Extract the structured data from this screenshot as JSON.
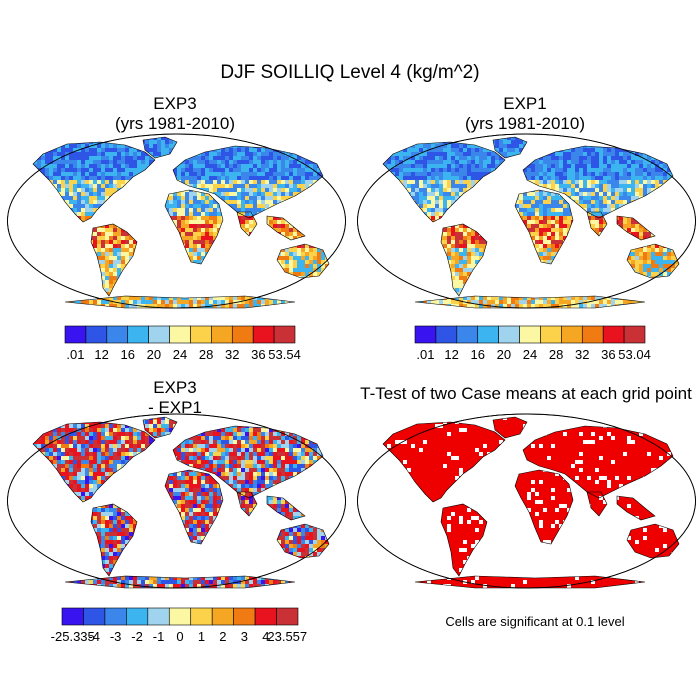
{
  "figure": {
    "title": "DJF SOILLIQ Level 4 (kg/m^2)"
  },
  "panels": [
    {
      "id": "exp3",
      "title_line1": "EXP3",
      "title_line2": "(yrs 1981-2010)",
      "field": "absolute"
    },
    {
      "id": "exp1",
      "title_line1": "EXP1",
      "title_line2": "(yrs 1981-2010)",
      "field": "absolute"
    },
    {
      "id": "diff",
      "title_line1": "EXP3",
      "title_line2": "- EXP1",
      "field": "difference"
    },
    {
      "id": "ttest",
      "title_line1": "T-Test of two Case means at each grid point",
      "title_line2": "",
      "field": "significance"
    }
  ],
  "colorbars": {
    "abs_colors": [
      "#3a14f0",
      "#2f55e6",
      "#3b86ea",
      "#3cb4f0",
      "#9fd3ee",
      "#fbf7a2",
      "#fbd24a",
      "#f5a623",
      "#f07b12",
      "#e8131e",
      "#c93136"
    ],
    "diff_colors": [
      "#3a14f0",
      "#2f55e6",
      "#3b86ea",
      "#3cb4f0",
      "#9fd3ee",
      "#fbf7a2",
      "#fbd24a",
      "#f5a623",
      "#f07b12",
      "#e8131e",
      "#c93136"
    ],
    "exp3_labels": [
      ".01",
      "12",
      "16",
      "20",
      "24",
      "28",
      "32",
      "36",
      "53.54"
    ],
    "exp1_labels": [
      ".01",
      "12",
      "16",
      "20",
      "24",
      "28",
      "32",
      "36",
      "53.04"
    ],
    "diff_labels": [
      "-25.335",
      "-4",
      "-3",
      "-2",
      "-1",
      "0",
      "1",
      "2",
      "3",
      "4",
      "23.557"
    ]
  },
  "significance": {
    "note": "Cells are significant at 0.1 level",
    "color": "#ee0000"
  }
}
